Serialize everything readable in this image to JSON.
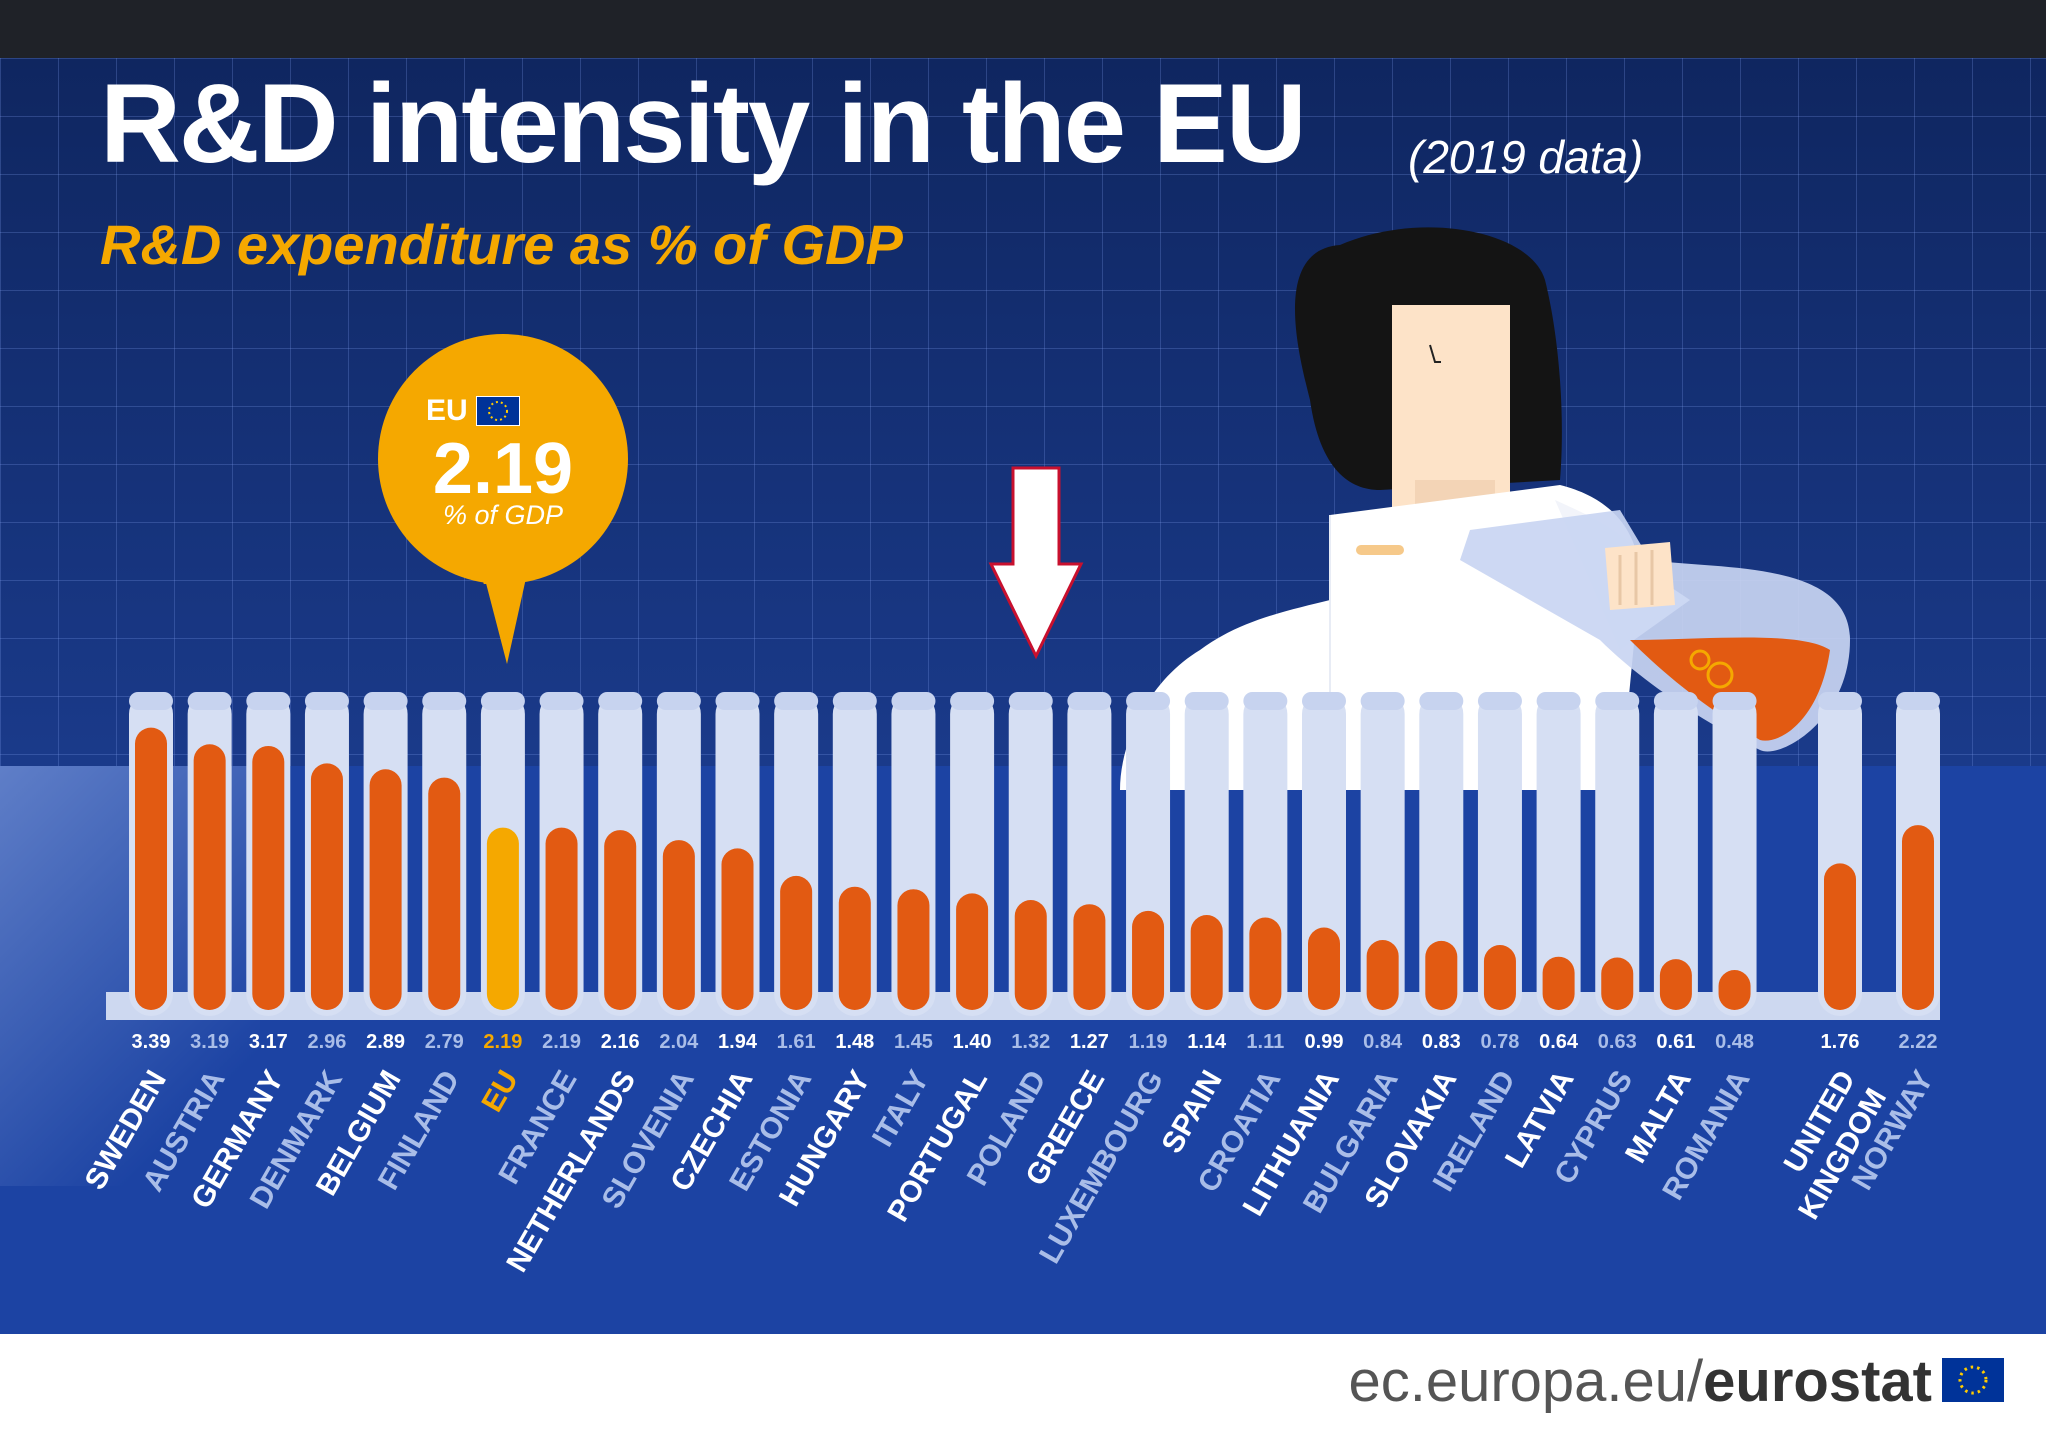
{
  "header": {
    "title": "R&D intensity in the EU",
    "title_note": "(2019 data)",
    "subtitle": "R&D expenditure as % of GDP"
  },
  "badge": {
    "label": "EU",
    "value": "2.19",
    "unit": "% of GDP"
  },
  "source": {
    "prefix": "ec.europa.eu/",
    "brand": "eurostat"
  },
  "colors": {
    "liquid": "#e25a12",
    "eu_liquid": "#f5a800",
    "eu_label": "#f5a800",
    "tube": "#d6dff3",
    "tube_shadow": "#c7d3ef",
    "rack": "#cdd8f0",
    "label_bold": "#ffffff",
    "label_light": "#a9bde8",
    "badge": "#f5a800",
    "panel": "#1c43a3"
  },
  "chart_data": {
    "type": "bar",
    "title": "R&D intensity in the EU (2019 data)",
    "ylabel": "R&D expenditure as % of GDP",
    "ylim": [
      0,
      3.9
    ],
    "categories": [
      {
        "name": "SWEDEN",
        "value": 3.39,
        "style": "bold"
      },
      {
        "name": "AUSTRIA",
        "value": 3.19,
        "style": "light"
      },
      {
        "name": "GERMANY",
        "value": 3.17,
        "style": "bold"
      },
      {
        "name": "DENMARK",
        "value": 2.96,
        "style": "light"
      },
      {
        "name": "BELGIUM",
        "value": 2.89,
        "style": "bold"
      },
      {
        "name": "FINLAND",
        "value": 2.79,
        "style": "light"
      },
      {
        "name": "EU",
        "value": 2.19,
        "style": "eu"
      },
      {
        "name": "FRANCE",
        "value": 2.19,
        "style": "light"
      },
      {
        "name": "NETHERLANDS",
        "value": 2.16,
        "style": "bold"
      },
      {
        "name": "SLOVENIA",
        "value": 2.04,
        "style": "light"
      },
      {
        "name": "CZECHIA",
        "value": 1.94,
        "style": "bold"
      },
      {
        "name": "ESTONIA",
        "value": 1.61,
        "style": "light"
      },
      {
        "name": "HUNGARY",
        "value": 1.48,
        "style": "bold"
      },
      {
        "name": "ITALY",
        "value": 1.45,
        "style": "light"
      },
      {
        "name": "PORTUGAL",
        "value": 1.4,
        "style": "bold"
      },
      {
        "name": "POLAND",
        "value": 1.32,
        "style": "light"
      },
      {
        "name": "GREECE",
        "value": 1.27,
        "style": "bold"
      },
      {
        "name": "LUXEMBOURG",
        "value": 1.19,
        "style": "light"
      },
      {
        "name": "SPAIN",
        "value": 1.14,
        "style": "bold"
      },
      {
        "name": "CROATIA",
        "value": 1.11,
        "style": "light"
      },
      {
        "name": "LITHUANIA",
        "value": 0.99,
        "style": "bold"
      },
      {
        "name": "BULGARIA",
        "value": 0.84,
        "style": "light"
      },
      {
        "name": "SLOVAKIA",
        "value": 0.83,
        "style": "bold"
      },
      {
        "name": "IRELAND",
        "value": 0.78,
        "style": "light"
      },
      {
        "name": "LATVIA",
        "value": 0.64,
        "style": "bold"
      },
      {
        "name": "CYPRUS",
        "value": 0.63,
        "style": "light"
      },
      {
        "name": "MALTA",
        "value": 0.61,
        "style": "bold"
      },
      {
        "name": "ROMANIA",
        "value": 0.48,
        "style": "light"
      },
      {
        "name": "UNITED KINGDOM",
        "value": 1.76,
        "style": "bold",
        "lines": [
          "UNITED",
          "KINGDOM"
        ]
      },
      {
        "name": "NORWAY",
        "value": 2.22,
        "style": "light"
      }
    ]
  }
}
